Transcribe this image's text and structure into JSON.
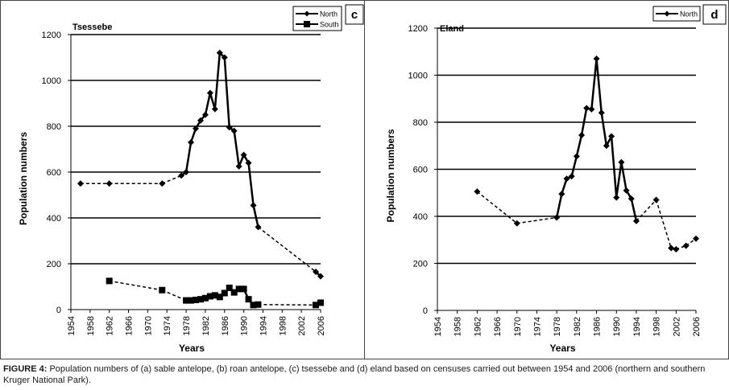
{
  "caption": {
    "lead": "FIGURE 4:",
    "text": " Population numbers of (a) sable antelope, (b) roan antelope, (c) tsessebe and (d) eland based on censuses carried out between 1954 and 2006 (northern and southern Kruger National Park)."
  },
  "chart_data": [
    {
      "type": "line",
      "panel_letter": "c",
      "title": "Tsessebe",
      "xlabel": "Years",
      "ylabel": "Population numbers",
      "xlim": [
        1954,
        2006
      ],
      "ylim": [
        0,
        1200
      ],
      "x_ticks": [
        "1954",
        "1958",
        "1962",
        "1966",
        "1970",
        "1974",
        "1978",
        "1982",
        "1986",
        "1990",
        "1994",
        "1998",
        "2002",
        "2006"
      ],
      "y_ticks": [
        "0",
        "200",
        "400",
        "600",
        "800",
        "1000",
        "1200"
      ],
      "grid": "horizontal",
      "legend_position": "top-right",
      "series": [
        {
          "name": "North",
          "marker": "diamond",
          "points": [
            {
              "x": 1956,
              "y": 550,
              "style": "dashed"
            },
            {
              "x": 1962,
              "y": 550,
              "style": "dashed"
            },
            {
              "x": 1973,
              "y": 550,
              "style": "dashed"
            },
            {
              "x": 1977,
              "y": 585,
              "style": "dashed"
            },
            {
              "x": 1978,
              "y": 600,
              "style": "solid"
            },
            {
              "x": 1979,
              "y": 730,
              "style": "solid"
            },
            {
              "x": 1980,
              "y": 790,
              "style": "solid"
            },
            {
              "x": 1981,
              "y": 825,
              "style": "solid"
            },
            {
              "x": 1982,
              "y": 850,
              "style": "solid"
            },
            {
              "x": 1983,
              "y": 945,
              "style": "solid"
            },
            {
              "x": 1984,
              "y": 875,
              "style": "solid"
            },
            {
              "x": 1985,
              "y": 1120,
              "style": "solid"
            },
            {
              "x": 1986,
              "y": 1100,
              "style": "solid"
            },
            {
              "x": 1987,
              "y": 795,
              "style": "solid"
            },
            {
              "x": 1988,
              "y": 780,
              "style": "solid"
            },
            {
              "x": 1989,
              "y": 625,
              "style": "solid"
            },
            {
              "x": 1990,
              "y": 675,
              "style": "solid"
            },
            {
              "x": 1991,
              "y": 640,
              "style": "solid"
            },
            {
              "x": 1992,
              "y": 455,
              "style": "solid"
            },
            {
              "x": 1993,
              "y": 360,
              "style": "solid"
            },
            {
              "x": 2005,
              "y": 165,
              "style": "dashed"
            },
            {
              "x": 2006,
              "y": 145,
              "style": "solid"
            }
          ]
        },
        {
          "name": "South",
          "marker": "square",
          "points": [
            {
              "x": 1962,
              "y": 125,
              "style": "dashed"
            },
            {
              "x": 1973,
              "y": 85,
              "style": "dashed"
            },
            {
              "x": 1978,
              "y": 40,
              "style": "dashed"
            },
            {
              "x": 1979,
              "y": 40,
              "style": "solid"
            },
            {
              "x": 1980,
              "y": 42,
              "style": "solid"
            },
            {
              "x": 1981,
              "y": 45,
              "style": "solid"
            },
            {
              "x": 1982,
              "y": 50,
              "style": "solid"
            },
            {
              "x": 1983,
              "y": 58,
              "style": "solid"
            },
            {
              "x": 1984,
              "y": 62,
              "style": "solid"
            },
            {
              "x": 1985,
              "y": 55,
              "style": "solid"
            },
            {
              "x": 1986,
              "y": 72,
              "style": "solid"
            },
            {
              "x": 1987,
              "y": 95,
              "style": "solid"
            },
            {
              "x": 1988,
              "y": 75,
              "style": "solid"
            },
            {
              "x": 1989,
              "y": 90,
              "style": "solid"
            },
            {
              "x": 1990,
              "y": 90,
              "style": "solid"
            },
            {
              "x": 1991,
              "y": 45,
              "style": "solid"
            },
            {
              "x": 1992,
              "y": 20,
              "style": "solid"
            },
            {
              "x": 1993,
              "y": 22,
              "style": "solid"
            },
            {
              "x": 2005,
              "y": 20,
              "style": "dashed"
            },
            {
              "x": 2006,
              "y": 30,
              "style": "solid"
            }
          ]
        }
      ]
    },
    {
      "type": "line",
      "panel_letter": "d",
      "title": "Eland",
      "xlabel": "Years",
      "ylabel": "Population numbers",
      "xlim": [
        1954,
        2006
      ],
      "ylim": [
        0,
        1200
      ],
      "x_ticks": [
        "1954",
        "1958",
        "1962",
        "1966",
        "1970",
        "1974",
        "1978",
        "1982",
        "1986",
        "1990",
        "1994",
        "1998",
        "2002",
        "2006"
      ],
      "y_ticks": [
        "0",
        "200",
        "400",
        "600",
        "800",
        "1000",
        "1200"
      ],
      "grid": "horizontal",
      "legend_position": "top-right",
      "series": [
        {
          "name": "North",
          "marker": "diamond",
          "points": [
            {
              "x": 1962,
              "y": 505,
              "style": "dashed"
            },
            {
              "x": 1970,
              "y": 370,
              "style": "dashed"
            },
            {
              "x": 1978,
              "y": 395,
              "style": "dashed"
            },
            {
              "x": 1979,
              "y": 495,
              "style": "solid"
            },
            {
              "x": 1980,
              "y": 560,
              "style": "solid"
            },
            {
              "x": 1981,
              "y": 570,
              "style": "solid"
            },
            {
              "x": 1982,
              "y": 655,
              "style": "solid"
            },
            {
              "x": 1983,
              "y": 745,
              "style": "solid"
            },
            {
              "x": 1984,
              "y": 860,
              "style": "solid"
            },
            {
              "x": 1985,
              "y": 855,
              "style": "solid"
            },
            {
              "x": 1986,
              "y": 1070,
              "style": "solid"
            },
            {
              "x": 1987,
              "y": 840,
              "style": "solid"
            },
            {
              "x": 1988,
              "y": 700,
              "style": "solid"
            },
            {
              "x": 1989,
              "y": 740,
              "style": "solid"
            },
            {
              "x": 1990,
              "y": 480,
              "style": "solid"
            },
            {
              "x": 1991,
              "y": 630,
              "style": "solid"
            },
            {
              "x": 1992,
              "y": 510,
              "style": "solid"
            },
            {
              "x": 1993,
              "y": 475,
              "style": "solid"
            },
            {
              "x": 1994,
              "y": 380,
              "style": "solid"
            },
            {
              "x": 1998,
              "y": 470,
              "style": "dashed"
            },
            {
              "x": 2001,
              "y": 265,
              "style": "dashed"
            },
            {
              "x": 2002,
              "y": 260,
              "style": "solid"
            },
            {
              "x": 2004,
              "y": 275,
              "style": "dashed"
            },
            {
              "x": 2006,
              "y": 305,
              "style": "dashed"
            }
          ]
        }
      ]
    }
  ]
}
